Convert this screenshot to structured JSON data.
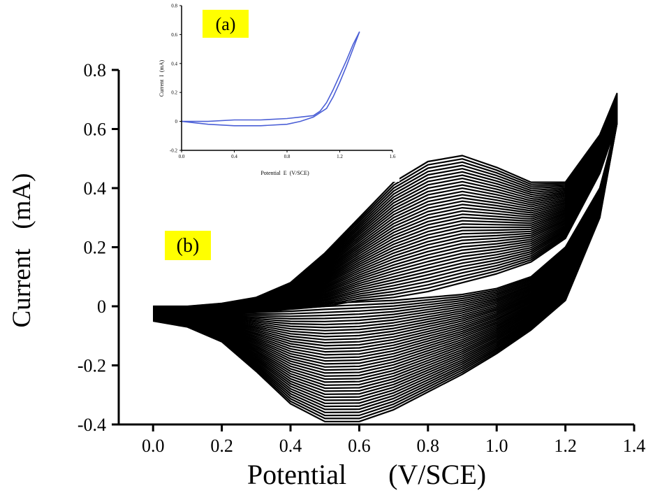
{
  "chart_data": [
    {
      "id": "main",
      "type": "line",
      "panel_label": "(b)",
      "xlabel": "Potential      (V/SCE)",
      "ylabel": "Current   (mA)",
      "xlim": [
        -0.1,
        1.4
      ],
      "ylim": [
        -0.4,
        0.8
      ],
      "x_ticks": [
        0.0,
        0.2,
        0.4,
        0.6,
        0.8,
        1.0,
        1.2,
        1.4
      ],
      "x_tick_labels": [
        "0.0",
        "0.2",
        "0.4",
        "0.6",
        "0.8",
        "1.0",
        "1.2",
        "1.4"
      ],
      "y_ticks": [
        -0.4,
        -0.2,
        0,
        0.2,
        0.4,
        0.6,
        0.8
      ],
      "y_tick_labels": [
        "-0.4",
        "-0.2",
        "0",
        "0.2",
        "0.4",
        "0.6",
        "0.8"
      ],
      "grid": false,
      "legend": "none",
      "series_color": "#000000",
      "cycles": 40,
      "first_cycle": {
        "anodic": {
          "x": [
            0.0,
            0.1,
            0.2,
            0.3,
            0.4,
            0.5,
            0.6,
            0.7,
            0.8,
            0.9,
            1.0,
            1.1,
            1.2,
            1.3,
            1.35
          ],
          "y": [
            -0.02,
            -0.02,
            -0.02,
            -0.02,
            -0.01,
            0.0,
            0.02,
            0.03,
            0.05,
            0.08,
            0.11,
            0.15,
            0.23,
            0.45,
            0.62
          ]
        },
        "cathodic": {
          "x": [
            1.35,
            1.3,
            1.2,
            1.1,
            1.0,
            0.9,
            0.8,
            0.7,
            0.6,
            0.5,
            0.4,
            0.3,
            0.2,
            0.1,
            0.0
          ],
          "y": [
            0.62,
            0.4,
            0.2,
            0.1,
            0.06,
            0.04,
            0.03,
            0.02,
            0.015,
            0.01,
            0.0,
            -0.01,
            -0.02,
            -0.02,
            -0.02
          ]
        }
      },
      "last_cycle": {
        "anodic": {
          "x": [
            0.0,
            0.1,
            0.2,
            0.3,
            0.4,
            0.5,
            0.6,
            0.7,
            0.8,
            0.9,
            1.0,
            1.1,
            1.2,
            1.3,
            1.35
          ],
          "y": [
            0.0,
            0.0,
            0.01,
            0.03,
            0.08,
            0.18,
            0.3,
            0.42,
            0.49,
            0.51,
            0.47,
            0.42,
            0.42,
            0.58,
            0.72
          ]
        },
        "cathodic": {
          "x": [
            1.35,
            1.3,
            1.2,
            1.1,
            1.0,
            0.9,
            0.8,
            0.7,
            0.6,
            0.5,
            0.4,
            0.3,
            0.2,
            0.1,
            0.0
          ],
          "y": [
            0.62,
            0.3,
            0.02,
            -0.08,
            -0.16,
            -0.23,
            -0.29,
            -0.35,
            -0.39,
            -0.39,
            -0.33,
            -0.22,
            -0.12,
            -0.07,
            -0.05
          ]
        }
      }
    },
    {
      "id": "inset",
      "type": "line",
      "panel_label": "(a)",
      "xlabel": "Potential  E  (V/SCE)",
      "ylabel": "Current  I  (mA)",
      "xlim": [
        0.0,
        1.6
      ],
      "ylim": [
        -0.2,
        0.8
      ],
      "x_ticks": [
        0.0,
        0.4,
        0.8,
        1.2,
        1.6
      ],
      "x_tick_labels": [
        "0.0",
        "0.4",
        "0.8",
        "1.2",
        "1.6"
      ],
      "y_ticks": [
        -0.2,
        0,
        0.2,
        0.4,
        0.6,
        0.8
      ],
      "y_tick_labels": [
        "-0.2",
        "0",
        "0.2",
        "0.4",
        "0.6",
        "0.8"
      ],
      "grid": false,
      "legend": "none",
      "series_color": "#4b5fd6",
      "series": [
        {
          "segment": "anodic",
          "x": [
            0.0,
            0.2,
            0.4,
            0.6,
            0.8,
            0.9,
            1.0,
            1.05,
            1.1,
            1.15,
            1.2,
            1.25,
            1.3,
            1.35
          ],
          "y": [
            0.0,
            0.0,
            0.01,
            0.01,
            0.02,
            0.03,
            0.04,
            0.07,
            0.13,
            0.22,
            0.32,
            0.42,
            0.53,
            0.62
          ]
        },
        {
          "segment": "cathodic",
          "x": [
            1.35,
            1.3,
            1.25,
            1.2,
            1.15,
            1.1,
            1.0,
            0.9,
            0.8,
            0.6,
            0.4,
            0.2,
            0.0
          ],
          "y": [
            0.62,
            0.5,
            0.38,
            0.27,
            0.17,
            0.09,
            0.03,
            0.0,
            -0.02,
            -0.03,
            -0.03,
            -0.02,
            0.0
          ]
        }
      ]
    }
  ],
  "colors": {
    "badge_bg": "#ffff00",
    "main_trace": "#000000",
    "inset_trace": "#4b5fd6",
    "axis": "#000000"
  }
}
